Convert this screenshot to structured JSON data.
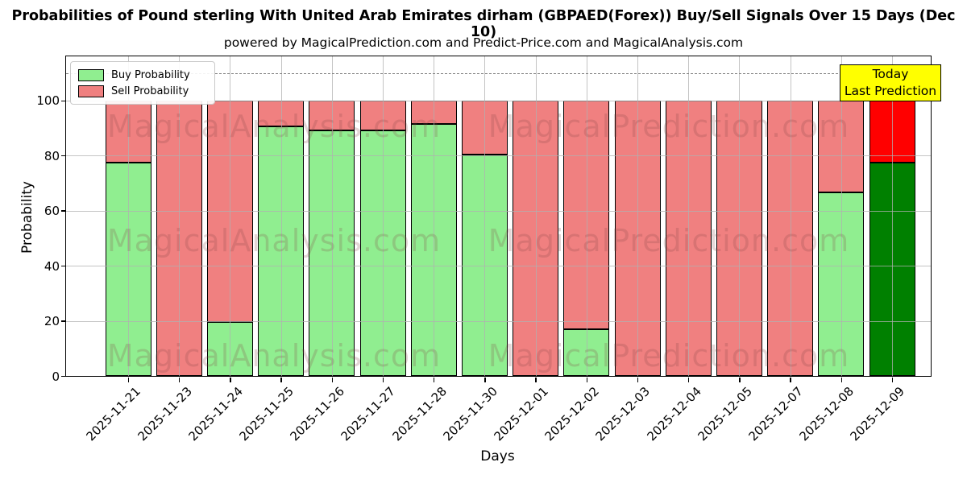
{
  "title": "Probabilities of Pound sterling With United Arab Emirates dirham (GBPAED(Forex)) Buy/Sell Signals Over 15 Days (Dec 10)",
  "subtitle": "powered by MagicalPrediction.com and Predict-Price.com and MagicalAnalysis.com",
  "legend": {
    "buy": "Buy Probability",
    "sell": "Sell Probability"
  },
  "today_box": {
    "line1": "Today",
    "line2": "Last Prediction",
    "bg": "#ffff00"
  },
  "watermarks": {
    "left": "MagicalAnalysis.com",
    "right": "MagicalPrediction.com"
  },
  "colors": {
    "buy": "#90ee90",
    "sell": "#f08080",
    "today_buy": "#008000",
    "today_sell": "#ff0000",
    "bar_edge": "#000000",
    "grid": "#b0b0b0",
    "dashed_line": "#7f7f7f",
    "today_box_bg": "#ffff00",
    "watermark": "rgba(130,70,70,0.22)"
  },
  "chart_data": {
    "type": "bar",
    "stacked": true,
    "title": "Probabilities of Pound sterling With United Arab Emirates dirham (GBPAED(Forex)) Buy/Sell Signals Over 15 Days (Dec 10)",
    "subtitle": "powered by MagicalPrediction.com and Predict-Price.com and MagicalAnalysis.com",
    "xlabel": "Days",
    "ylabel": "Probability",
    "ylim": [
      0,
      116
    ],
    "yticks": [
      0,
      20,
      40,
      60,
      80,
      100
    ],
    "grid": true,
    "legend_position": "upper left",
    "dashed_line_y": 110,
    "categories": [
      "2025-11-21",
      "2025-11-23",
      "2025-11-24",
      "2025-11-25",
      "2025-11-26",
      "2025-11-27",
      "2025-11-28",
      "2025-11-30",
      "2025-12-01",
      "2025-12-02",
      "2025-12-03",
      "2025-12-04",
      "2025-12-05",
      "2025-12-07",
      "2025-12-08",
      "2025-12-09"
    ],
    "series": [
      {
        "name": "Buy Probability",
        "color": "#90ee90",
        "values": [
          77.5,
          0,
          19.5,
          90.5,
          89,
          89,
          91.5,
          80.5,
          0,
          17,
          0,
          0,
          0,
          0,
          66.5,
          77.5
        ]
      },
      {
        "name": "Sell Probability",
        "color": "#f08080",
        "values": [
          22.5,
          100,
          80.5,
          9.5,
          11,
          11,
          8.5,
          19.5,
          100,
          83,
          100,
          100,
          100,
          100,
          33.5,
          22.5
        ]
      }
    ],
    "today_index": 15,
    "today_annotation": "Today\nLast Prediction"
  }
}
